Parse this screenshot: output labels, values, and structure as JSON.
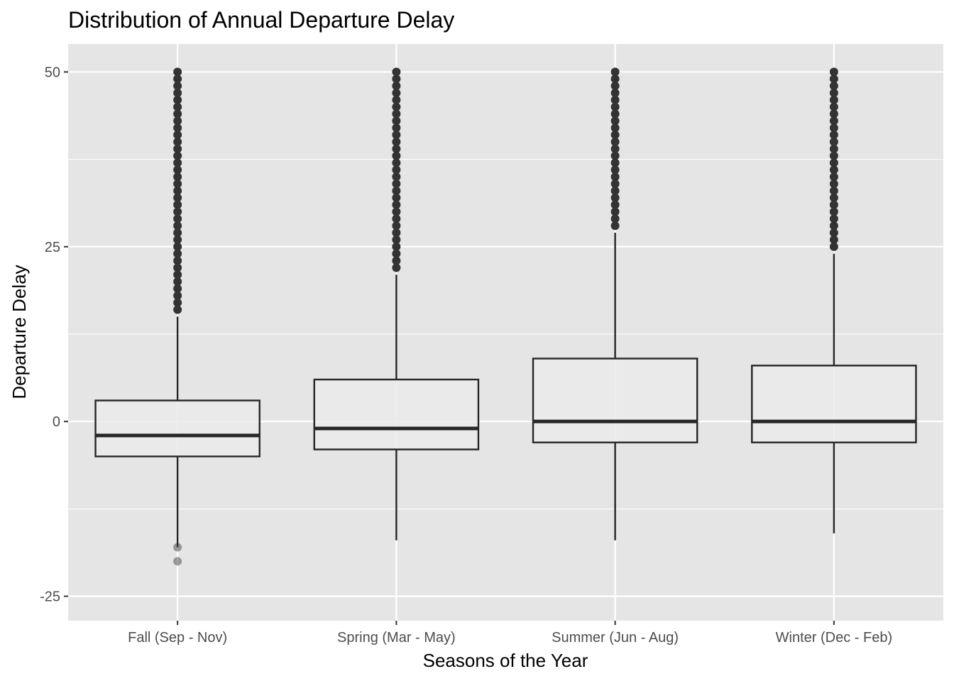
{
  "chart_data": {
    "type": "boxplot",
    "title": "Distribution of Annual Departure Delay",
    "xlabel": "Seasons of the Year",
    "ylabel": "Departure Delay",
    "ylim": [
      -28.5,
      54
    ],
    "yticks": [
      -25,
      0,
      25,
      50
    ],
    "grid": true,
    "legend": "none",
    "colors": {
      "panel": "#e5e5e5",
      "grid": "#ffffff",
      "box_fill": "#ebebeb",
      "box_line": "#262626",
      "outlier": "#333333",
      "tick_text": "#4d4d4d"
    },
    "categories": [
      "Fall (Sep - Nov)",
      "Spring (Mar - May)",
      "Summer (Jun - Aug)",
      "Winter (Dec - Feb)"
    ],
    "boxes": [
      {
        "category": "Fall (Sep - Nov)",
        "whisker_low": -18,
        "q1": -5,
        "median": -2,
        "q3": 3,
        "whisker_high": 15,
        "outliers_high_from": 16,
        "outliers_high_to": 50,
        "outliers_low": [
          -18,
          -20
        ]
      },
      {
        "category": "Spring (Mar - May)",
        "whisker_low": -17,
        "q1": -4,
        "median": -1,
        "q3": 6,
        "whisker_high": 21,
        "outliers_high_from": 22,
        "outliers_high_to": 50,
        "outliers_low": []
      },
      {
        "category": "Summer (Jun - Aug)",
        "whisker_low": -17,
        "q1": -3,
        "median": 0,
        "q3": 9,
        "whisker_high": 27,
        "outliers_high_from": 28,
        "outliers_high_to": 50,
        "outliers_low": []
      },
      {
        "category": "Winter (Dec - Feb)",
        "whisker_low": -16,
        "q1": -3,
        "median": 0,
        "q3": 8,
        "whisker_high": 24,
        "outliers_high_from": 25,
        "outliers_high_to": 50,
        "outliers_low": []
      }
    ]
  }
}
